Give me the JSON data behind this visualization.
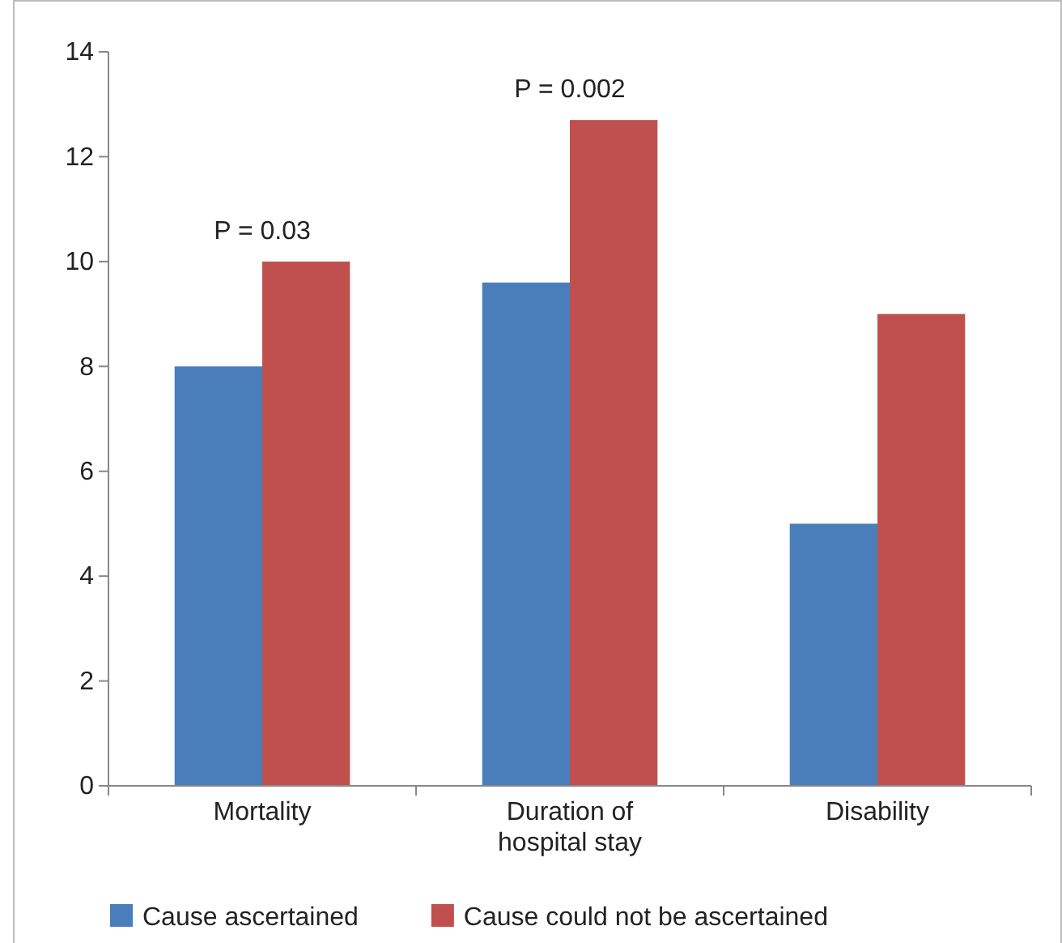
{
  "chart_data": {
    "type": "bar",
    "categories": [
      "Mortality",
      "Duration of\nhospital stay",
      "Disability"
    ],
    "series": [
      {
        "name": "Cause ascertained",
        "color": "#4a7ebb",
        "values": [
          8,
          9.6,
          5
        ]
      },
      {
        "name": "Cause could not be ascertained",
        "color": "#c0504d",
        "values": [
          10,
          12.7,
          9
        ]
      }
    ],
    "ylim": [
      0,
      14
    ],
    "yticks": [
      0,
      2,
      4,
      6,
      8,
      10,
      12,
      14
    ],
    "grid": false,
    "legend": "bottom",
    "annotations": [
      "P = 0.03",
      "P = 0.002"
    ]
  }
}
